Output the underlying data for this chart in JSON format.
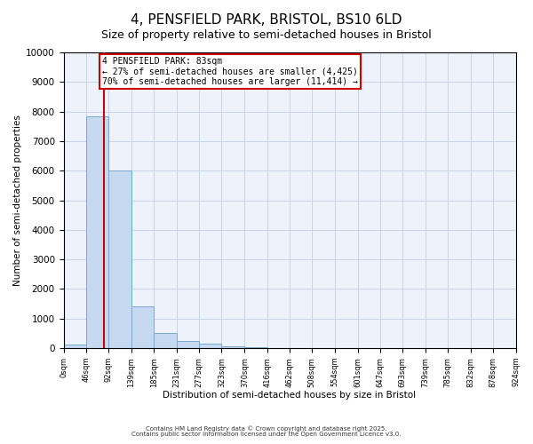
{
  "title": "4, PENSFIELD PARK, BRISTOL, BS10 6LD",
  "subtitle": "Size of property relative to semi-detached houses in Bristol",
  "xlabel": "Distribution of semi-detached houses by size in Bristol",
  "ylabel": "Number of semi-detached properties",
  "bin_edges": [
    0,
    46,
    92,
    139,
    185,
    231,
    277,
    323,
    370,
    416,
    462,
    508,
    554,
    601,
    647,
    693,
    739,
    785,
    832,
    878,
    924
  ],
  "bar_heights": [
    120,
    7850,
    6000,
    1400,
    500,
    230,
    150,
    75,
    25,
    5,
    2,
    1,
    0,
    0,
    0,
    0,
    0,
    0,
    0,
    0
  ],
  "bar_color": "#c6d9f0",
  "bar_edge_color": "#7aaad0",
  "property_size": 83,
  "property_label": "4 PENSFIELD PARK: 83sqm",
  "pct_smaller": "27% of semi-detached houses are smaller (4,425)",
  "pct_larger": "70% of semi-detached houses are larger (11,414)",
  "red_line_color": "#cc0000",
  "annotation_box_color": "#cc0000",
  "ylim": [
    0,
    10000
  ],
  "yticks": [
    0,
    1000,
    2000,
    3000,
    4000,
    5000,
    6000,
    7000,
    8000,
    9000,
    10000
  ],
  "tick_labels": [
    "0sqm",
    "46sqm",
    "92sqm",
    "139sqm",
    "185sqm",
    "231sqm",
    "277sqm",
    "323sqm",
    "370sqm",
    "416sqm",
    "462sqm",
    "508sqm",
    "554sqm",
    "601sqm",
    "647sqm",
    "693sqm",
    "739sqm",
    "785sqm",
    "832sqm",
    "878sqm",
    "924sqm"
  ],
  "footer1": "Contains HM Land Registry data © Crown copyright and database right 2025.",
  "footer2": "Contains public sector information licensed under the Open Government Licence v3.0.",
  "background_color": "#eef2fb",
  "grid_color": "#c8d4e8",
  "title_fontsize": 11,
  "subtitle_fontsize": 9
}
